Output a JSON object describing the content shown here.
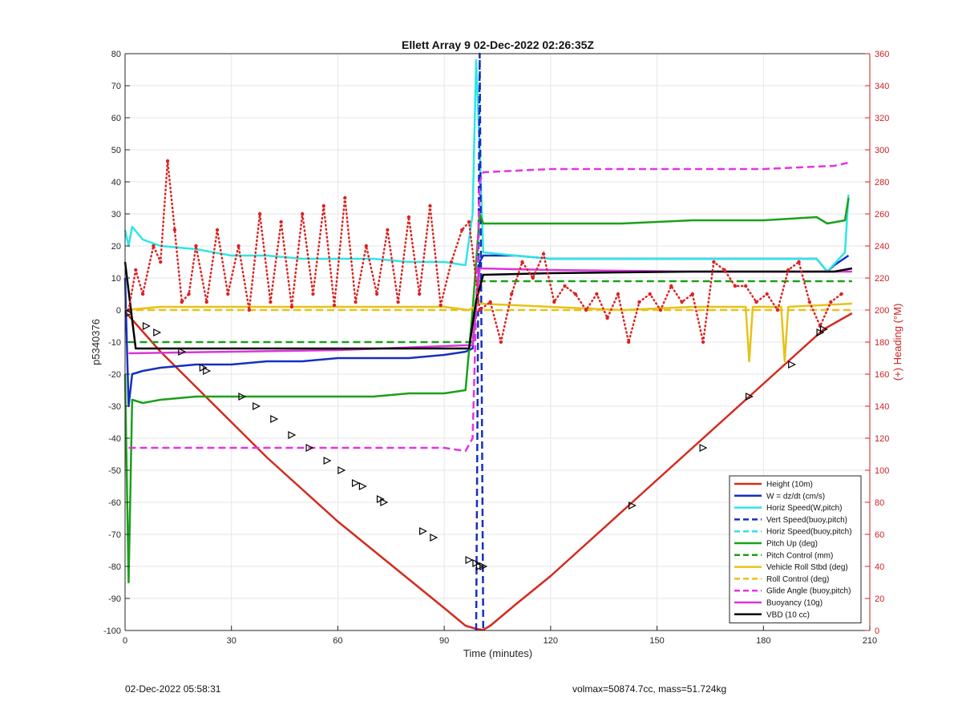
{
  "chart_data": {
    "type": "line",
    "title": "Ellett Array 9 02-Dec-2022 02:26:35Z",
    "xlabel": "Time (minutes)",
    "ylabel": "p5340376",
    "y2label": "(+) Heading (°M)",
    "xlim": [
      0,
      210
    ],
    "ylim": [
      -100,
      80
    ],
    "y2lim": [
      0,
      360
    ],
    "xticks": [
      0,
      30,
      60,
      90,
      120,
      150,
      180,
      210
    ],
    "yticks": [
      -100,
      -90,
      -80,
      -70,
      -60,
      -50,
      -40,
      -30,
      -20,
      -10,
      0,
      10,
      20,
      30,
      40,
      50,
      60,
      70,
      80
    ],
    "y2ticks": [
      0,
      20,
      40,
      60,
      80,
      100,
      120,
      140,
      160,
      180,
      200,
      220,
      240,
      260,
      280,
      300,
      320,
      340,
      360
    ],
    "grid": true,
    "legend_position": "bottom-right",
    "series": [
      {
        "name": "Height (10m)",
        "color": "#d42a1e",
        "style": "solid",
        "x": [
          0,
          2,
          10,
          20,
          30,
          40,
          50,
          60,
          70,
          80,
          90,
          96,
          99,
          101,
          103,
          110,
          120,
          130,
          143,
          150,
          160,
          170,
          180,
          190,
          197,
          205
        ],
        "y": [
          -0.5,
          -3,
          -13,
          -24,
          -35,
          -46,
          -56,
          -66,
          -75,
          -84,
          -93,
          -98.5,
          -99.5,
          -99.8,
          -98.5,
          -92,
          -83,
          -73,
          -60,
          -53,
          -43,
          -33,
          -23,
          -13,
          -6,
          -1
        ]
      },
      {
        "name": "W = dz/dt (cm/s)",
        "color": "#1530c0",
        "style": "solid",
        "x": [
          0,
          1,
          2,
          5,
          10,
          20,
          30,
          40,
          50,
          60,
          70,
          80,
          90,
          96,
          98,
          100,
          101,
          110,
          120,
          140,
          160,
          180,
          195,
          198,
          200,
          204
        ],
        "y": [
          10,
          -30,
          -20,
          -19,
          -18,
          -17,
          -17,
          -16,
          -16,
          -15,
          -15,
          -15,
          -14,
          -13,
          -12,
          15,
          17,
          17,
          16,
          16,
          16,
          16,
          16,
          12,
          14,
          17
        ]
      },
      {
        "name": "Horiz Speed(W,pitch)",
        "color": "#2ee6e6",
        "style": "solid",
        "x": [
          0,
          1,
          2,
          5,
          10,
          20,
          30,
          40,
          50,
          60,
          70,
          80,
          90,
          96,
          98,
          99,
          100,
          101,
          110,
          120,
          140,
          160,
          180,
          195,
          198,
          203,
          204
        ],
        "y": [
          25,
          20,
          26,
          22,
          20,
          19,
          17,
          17,
          16,
          16,
          16,
          15,
          15,
          14,
          30,
          78,
          50,
          18,
          17,
          16,
          16,
          16,
          16,
          16,
          12,
          18,
          36
        ]
      },
      {
        "name": "Vert Speed(buoy,pitch)",
        "color": "#1530c0",
        "style": "dashed",
        "x": [
          99,
          100,
          101
        ],
        "y": [
          -100,
          80,
          -100
        ]
      },
      {
        "name": "Horiz Speed(buoy,pitch)",
        "color": "#2ee6e6",
        "style": "dashed",
        "x": [],
        "y": []
      },
      {
        "name": "Pitch Up (deg)",
        "color": "#1aa01a",
        "style": "solid",
        "x": [
          0,
          1,
          2,
          5,
          10,
          20,
          30,
          40,
          50,
          60,
          70,
          80,
          90,
          96,
          98,
          100,
          101,
          110,
          120,
          140,
          160,
          180,
          195,
          198,
          203,
          204
        ],
        "y": [
          -20,
          -85,
          -28,
          -29,
          -28,
          -27,
          -27,
          -27,
          -27,
          -27,
          -27,
          -26,
          -26,
          -25,
          0,
          30,
          27,
          27,
          27,
          27,
          28,
          28,
          29,
          27,
          28,
          35
        ]
      },
      {
        "name": "Pitch Control (mm)",
        "color": "#1aa01a",
        "style": "dashed",
        "x": [
          1,
          98,
          100,
          205
        ],
        "y": [
          -10,
          -10,
          9,
          9
        ]
      },
      {
        "name": "Vehicle Roll Stbd (deg)",
        "color": "#e6c219",
        "style": "solid",
        "x": [
          0,
          10,
          20,
          30,
          40,
          50,
          60,
          70,
          80,
          90,
          97,
          100,
          120,
          140,
          160,
          175,
          176,
          177,
          185,
          186,
          187,
          205
        ],
        "y": [
          0,
          1,
          1,
          1,
          1,
          1,
          1,
          1,
          1,
          1,
          0,
          2,
          1,
          0,
          1,
          1,
          -16,
          1,
          1,
          -16,
          1,
          2
        ]
      },
      {
        "name": "Roll Control (deg)",
        "color": "#e6c219",
        "style": "dashed",
        "x": [
          0,
          98,
          100,
          205
        ],
        "y": [
          0,
          0,
          0,
          0
        ]
      },
      {
        "name": "Glide Angle (buoy,pitch)",
        "color": "#e533e5",
        "style": "dashed",
        "x": [
          1,
          30,
          60,
          90,
          96,
          98,
          100,
          101,
          120,
          150,
          180,
          200,
          204
        ],
        "y": [
          -43,
          -43,
          -43,
          -43,
          -44,
          -40,
          40,
          43,
          44,
          44,
          44,
          45,
          46
        ]
      },
      {
        "name": "Buoyancy (10g)",
        "color": "#d935d9",
        "style": "solid",
        "x": [
          1,
          30,
          60,
          96,
          98,
          100,
          120,
          160,
          180,
          200,
          205
        ],
        "y": [
          -13.5,
          -13,
          -12.5,
          -11,
          -11,
          13,
          12.5,
          12,
          12,
          12,
          12
        ]
      },
      {
        "name": "VBD (10 cc)",
        "color": "#000000",
        "style": "solid",
        "x": [
          0,
          3,
          97,
          99,
          101,
          120,
          160,
          200,
          205
        ],
        "y": [
          15,
          -12,
          -12,
          3,
          11,
          11.5,
          12,
          12,
          13
        ]
      }
    ],
    "heading_series": {
      "color": "#dd2222",
      "style": "dotted",
      "axis": "right",
      "x": [
        1,
        3,
        5,
        8,
        10,
        12,
        14,
        16,
        18,
        20,
        23,
        26,
        29,
        32,
        35,
        38,
        41,
        44,
        47,
        50,
        53,
        56,
        59,
        62,
        65,
        68,
        71,
        74,
        77,
        80,
        83,
        86,
        89,
        92,
        95,
        97,
        100,
        103,
        106,
        109,
        112,
        115,
        118,
        121,
        124,
        127,
        130,
        133,
        136,
        139,
        142,
        145,
        148,
        151,
        154,
        157,
        160,
        163,
        166,
        169,
        172,
        175,
        178,
        181,
        184,
        187,
        190,
        193,
        196,
        199,
        202
      ],
      "y": [
        200,
        225,
        210,
        240,
        230,
        293,
        250,
        205,
        210,
        240,
        205,
        250,
        210,
        240,
        200,
        260,
        205,
        255,
        202,
        260,
        210,
        265,
        203,
        270,
        205,
        240,
        210,
        250,
        205,
        258,
        210,
        265,
        203,
        230,
        250,
        255,
        200,
        205,
        180,
        210,
        230,
        220,
        235,
        205,
        215,
        210,
        200,
        210,
        195,
        210,
        180,
        205,
        210,
        200,
        215,
        205,
        210,
        180,
        230,
        225,
        215,
        215,
        205,
        210,
        200,
        225,
        230,
        205,
        190,
        205,
        210
      ]
    },
    "markers": {
      "symbol": "triangle",
      "x": [
        1,
        6,
        9,
        16,
        22,
        23,
        33,
        37,
        42,
        47,
        52,
        57,
        61,
        65,
        67,
        72,
        73,
        84,
        87,
        97,
        99,
        100,
        101,
        143,
        163,
        176,
        188,
        196,
        197
      ],
      "y": [
        -1,
        -5,
        -7,
        -13,
        -18,
        -19,
        -27,
        -30,
        -34,
        -39,
        -43,
        -47,
        -50,
        -54,
        -55,
        -59,
        -60,
        -69,
        -71,
        -78,
        -79,
        -80,
        -80,
        -61,
        -43,
        -27,
        -17,
        -7,
        -6
      ]
    },
    "footer_left": "02-Dec-2022 05:58:31",
    "footer_right": "volmax=50874.7cc, mass=51.724kg"
  }
}
